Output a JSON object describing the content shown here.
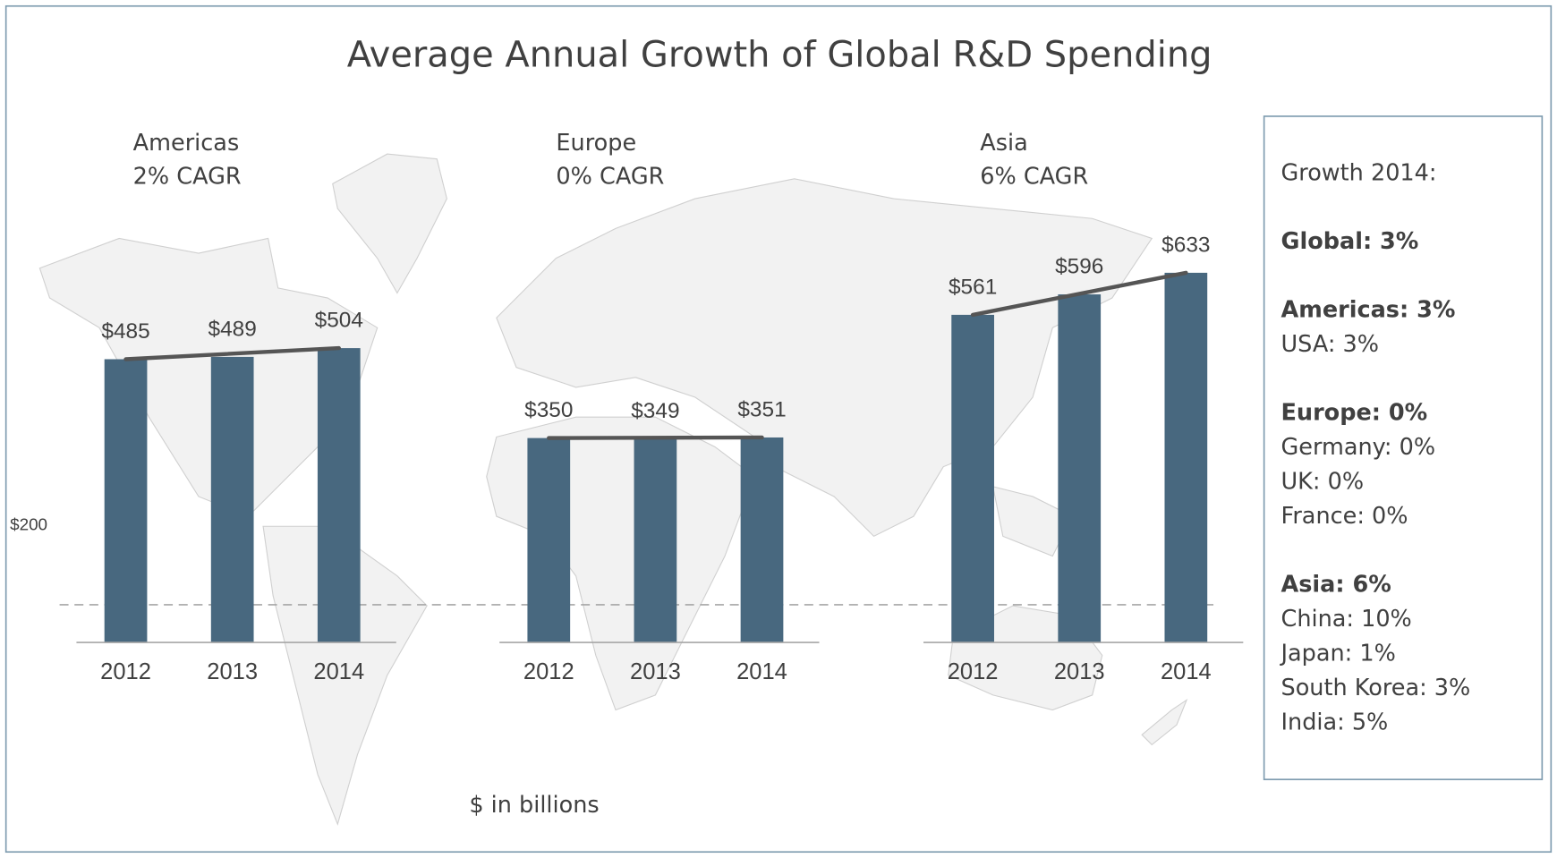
{
  "title": "Average Annual Growth of Global R&D Spending",
  "note": "$ in billions",
  "chart_data": [
    {
      "type": "bar",
      "title": "Americas",
      "subtitle": "2% CAGR",
      "categories": [
        "2012",
        "2013",
        "2014"
      ],
      "values": [
        485,
        489,
        504
      ],
      "value_labels": [
        "$485",
        "$489",
        "$504"
      ],
      "color": "#48687f",
      "ylim": [
        0,
        680
      ],
      "yticks": [
        {
          "value": 200,
          "label": "$200"
        }
      ],
      "trend_line": true
    },
    {
      "type": "bar",
      "title": "Europe",
      "subtitle": "0% CAGR",
      "categories": [
        "2012",
        "2013",
        "2014"
      ],
      "values": [
        350,
        349,
        351
      ],
      "value_labels": [
        "$350",
        "$349",
        "$351"
      ],
      "color": "#48687f",
      "ylim": [
        0,
        680
      ],
      "trend_line": true
    },
    {
      "type": "bar",
      "title": "Asia",
      "subtitle": "6% CAGR",
      "categories": [
        "2012",
        "2013",
        "2014"
      ],
      "values": [
        561,
        596,
        633
      ],
      "value_labels": [
        "$561",
        "$596",
        "$633"
      ],
      "color": "#48687f",
      "ylim": [
        0,
        680
      ],
      "trend_line": true
    }
  ],
  "panel": {
    "title": "Growth 2014:",
    "groups": [
      {
        "heading": "Global: 3%",
        "items": []
      },
      {
        "heading": "Americas: 3%",
        "items": [
          "USA: 3%"
        ]
      },
      {
        "heading": "Europe: 0%",
        "items": [
          "Germany: 0%",
          "UK: 0%",
          "France: 0%"
        ]
      },
      {
        "heading": "Asia: 6%",
        "items": [
          "China: 10%",
          "Japan: 1%",
          "South Korea: 3%",
          "India: 5%"
        ]
      }
    ]
  }
}
